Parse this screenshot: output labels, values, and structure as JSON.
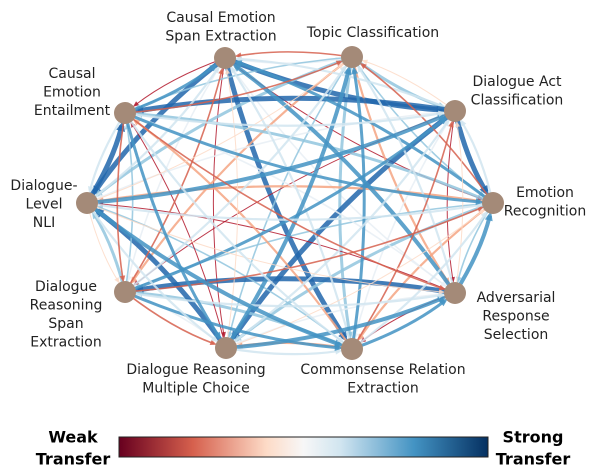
{
  "nodes": [
    {
      "label_lines": [
        "Causal Emotion",
        "Span Extraction"
      ]
    },
    {
      "label_lines": [
        "Topic Classification"
      ]
    },
    {
      "label_lines": [
        "Dialogue Act",
        "Classification"
      ]
    },
    {
      "label_lines": [
        "Emotion",
        "Recognition"
      ]
    },
    {
      "label_lines": [
        "Adversarial",
        "Response",
        "Selection"
      ]
    },
    {
      "label_lines": [
        "Commonsense Relation",
        "Extraction"
      ]
    },
    {
      "label_lines": [
        "Dialogue Reasoning",
        "Multiple Choice"
      ]
    },
    {
      "label_lines": [
        "Dialogue",
        "Reasoning",
        "Span",
        "Extraction"
      ]
    },
    {
      "label_lines": [
        "Dialogue-",
        "Level",
        "NLI"
      ]
    },
    {
      "label_lines": [
        "Causal",
        "Emotion",
        "Entailment"
      ]
    }
  ],
  "legend": {
    "low_lines": [
      "Weak",
      "Transfer"
    ],
    "high_lines": [
      "Strong",
      "Transfer"
    ]
  }
}
